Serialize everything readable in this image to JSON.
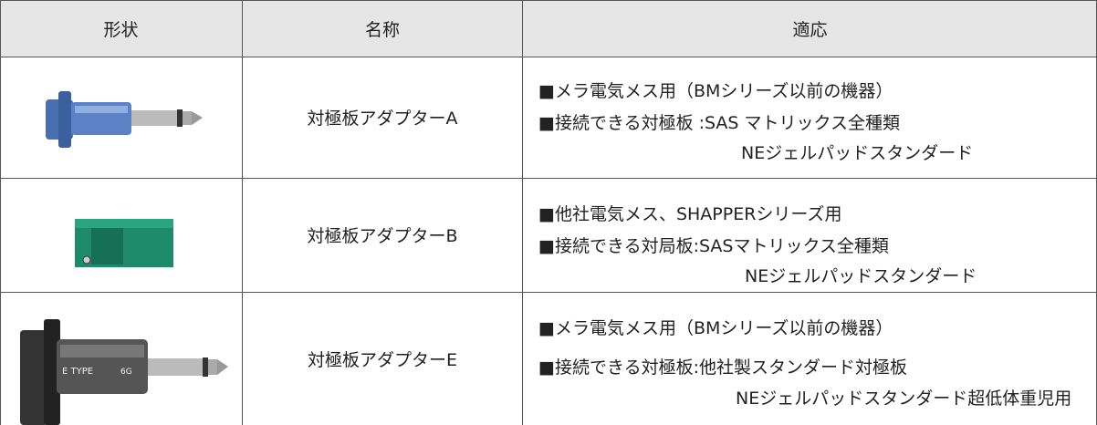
{
  "table": {
    "header": [
      "形状",
      "名称",
      "適応"
    ],
    "rows": [
      {
        "name": "対極板アダプターA",
        "lines": [
          "■メラ電気メス用（BMシリーズ以前の機器）",
          "■接続できる対極板 :SAS マトリックス全種類",
          "NEジェルパッドスタンダード"
        ]
      },
      {
        "name": "対極板アダプターB",
        "lines": [
          "■他社電気メス、SHAPPERシリーズ用",
          "■接続できる対局板:SASマトリックス全種類",
          "NEジェルパッドスタンダード"
        ]
      },
      {
        "name": "対極板アダプターE",
        "lines": [
          "■メラ電気メス用（BMシリーズ以前の機器）",
          "■接続できる対極板:他社製スタンダード対極板",
          "NEジェルパッドスタンダード超低体重児用"
        ],
        "image_text": [
          "E TYPE",
          "6G"
        ]
      }
    ]
  }
}
